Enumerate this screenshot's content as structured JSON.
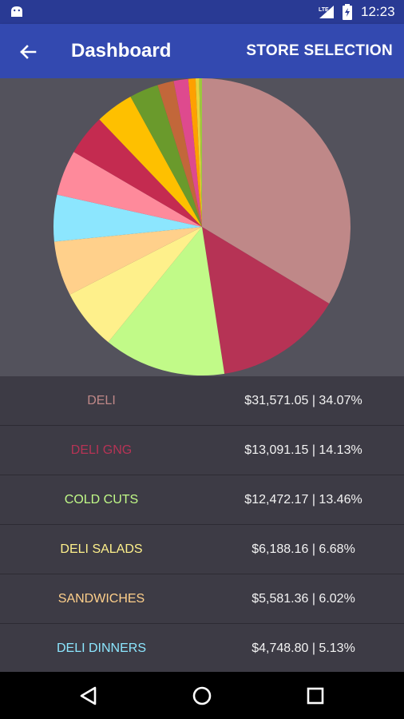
{
  "status_bar": {
    "time": "12:23",
    "signal_label": "LTE",
    "icons": [
      "android-icon",
      "signal-icon",
      "battery-icon"
    ]
  },
  "app_bar": {
    "title": "Dashboard",
    "action_label": "STORE SELECTION",
    "icon": "arrow-left-icon"
  },
  "chart_data": {
    "type": "pie",
    "slices": [
      {
        "label": "DELI",
        "value": 31571.05,
        "percent": 34.07,
        "color": "#bf8888"
      },
      {
        "label": "DELI GNG",
        "value": 13091.15,
        "percent": 14.13,
        "color": "#b63355"
      },
      {
        "label": "COLD CUTS",
        "value": 12472.17,
        "percent": 13.46,
        "color": "#c1fa88"
      },
      {
        "label": "DELI SALADS",
        "value": 6188.16,
        "percent": 6.68,
        "color": "#fef08b"
      },
      {
        "label": "SANDWICHES",
        "value": 5581.36,
        "percent": 6.02,
        "color": "#ffd08b"
      },
      {
        "label": "DELI DINNERS",
        "value": 4748.8,
        "percent": 5.13,
        "color": "#8ce6fe"
      },
      {
        "percent": 5.0,
        "color": "#fe8a9b"
      },
      {
        "percent": 4.5,
        "color": "#c42b50"
      },
      {
        "percent": 4.2,
        "color": "#fec000"
      },
      {
        "percent": 3.2,
        "color": "#6a9a2c"
      },
      {
        "percent": 1.8,
        "color": "#c2673a"
      },
      {
        "percent": 1.6,
        "color": "#de4a8e"
      },
      {
        "percent": 0.8,
        "color": "#fea000"
      },
      {
        "percent": 0.4,
        "color": "#e8d23a"
      },
      {
        "percent": 0.3,
        "color": "#9cc83c"
      }
    ]
  },
  "rows": [
    {
      "name": "DELI",
      "value": "$31,571.05 | 34.07%",
      "color": "#bf8888"
    },
    {
      "name": "DELI GNG",
      "value": "$13,091.15 | 14.13%",
      "color": "#b63355"
    },
    {
      "name": "COLD CUTS",
      "value": "$12,472.17 | 13.46%",
      "color": "#c1fa88"
    },
    {
      "name": "DELI SALADS",
      "value": "$6,188.16 | 6.68%",
      "color": "#fef08b"
    },
    {
      "name": "SANDWICHES",
      "value": "$5,581.36 | 6.02%",
      "color": "#ffd08b"
    },
    {
      "name": "DELI DINNERS",
      "value": "$4,748.80 | 5.13%",
      "color": "#8ce6fe"
    }
  ],
  "nav_bar": {
    "icons": [
      "back-triangle-icon",
      "home-circle-icon",
      "recents-square-icon"
    ]
  }
}
